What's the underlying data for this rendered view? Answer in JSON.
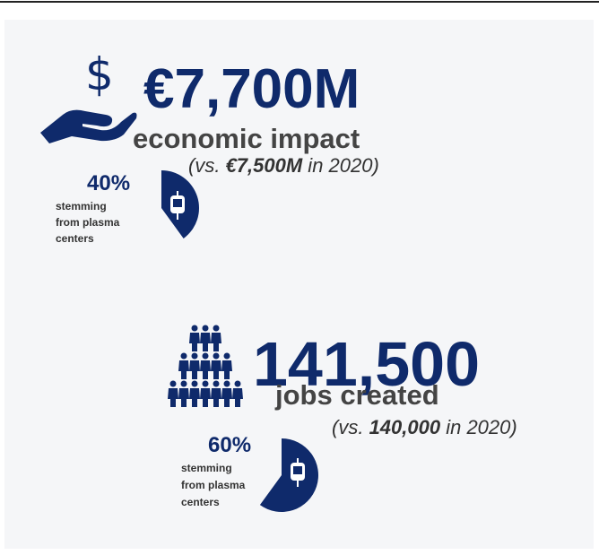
{
  "stats": [
    {
      "value": "€7,700M",
      "label": "economic impact",
      "comparison": {
        "open": "(vs. ",
        "value": "€7,500M",
        "close": " in 2020)"
      },
      "percent": {
        "value": 40,
        "label": "40%"
      },
      "note": [
        "stemming",
        "from plasma",
        "centers"
      ]
    },
    {
      "value": "141,500",
      "label": "jobs created",
      "comparison": {
        "open": "(vs. ",
        "value": "140,000",
        "close": " in 2020)"
      },
      "percent": {
        "value": 60,
        "label": "60%"
      },
      "note": [
        "stemming",
        "from plasma",
        "centers"
      ]
    }
  ]
}
